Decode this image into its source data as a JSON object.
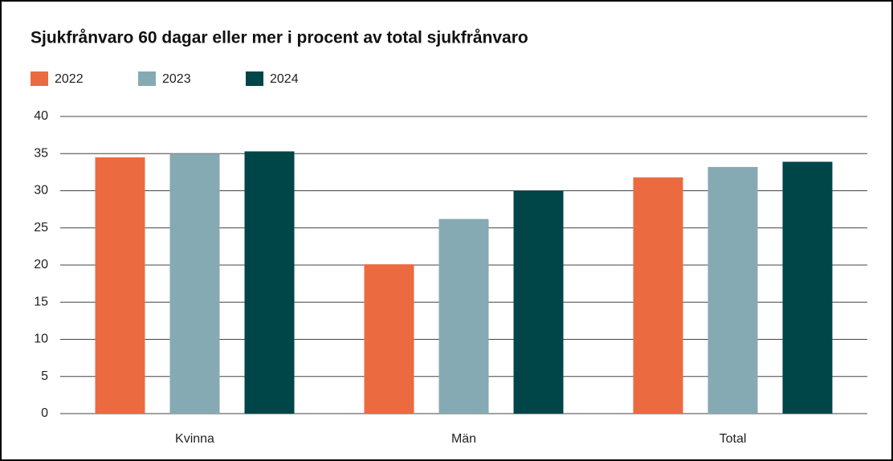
{
  "chart_data": {
    "type": "bar",
    "title": "Sjukfrånvaro 60 dagar eller mer i procent av total sjukfrånvaro",
    "categories": [
      "Kvinna",
      "Män",
      "Total"
    ],
    "series": [
      {
        "name": "2022",
        "color": "#ec6a40",
        "values": [
          34.5,
          20.1,
          31.8
        ]
      },
      {
        "name": "2023",
        "color": "#86aab3",
        "values": [
          35.0,
          26.2,
          33.2
        ]
      },
      {
        "name": "2024",
        "color": "#004548",
        "values": [
          35.3,
          30.0,
          33.9
        ]
      }
    ],
    "ylim": [
      0,
      40
    ],
    "yticks": [
      0,
      5,
      10,
      15,
      20,
      25,
      30,
      35,
      40
    ],
    "grid": true
  }
}
